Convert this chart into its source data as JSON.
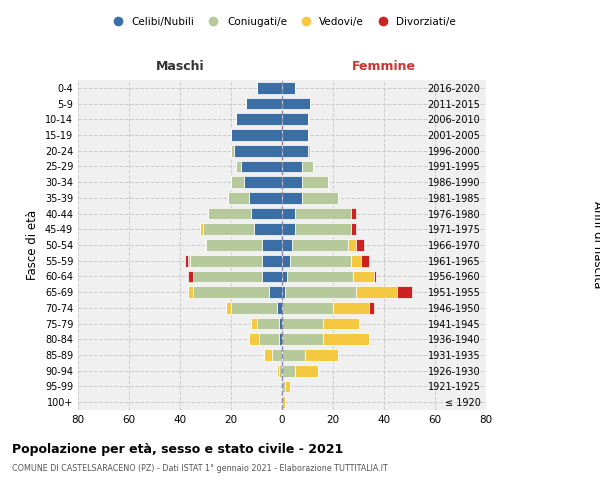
{
  "age_groups": [
    "100+",
    "95-99",
    "90-94",
    "85-89",
    "80-84",
    "75-79",
    "70-74",
    "65-69",
    "60-64",
    "55-59",
    "50-54",
    "45-49",
    "40-44",
    "35-39",
    "30-34",
    "25-29",
    "20-24",
    "15-19",
    "10-14",
    "5-9",
    "0-4"
  ],
  "birth_years": [
    "≤ 1920",
    "1921-1925",
    "1926-1930",
    "1931-1935",
    "1936-1940",
    "1941-1945",
    "1946-1950",
    "1951-1955",
    "1956-1960",
    "1961-1965",
    "1966-1970",
    "1971-1975",
    "1976-1980",
    "1981-1985",
    "1986-1990",
    "1991-1995",
    "1996-2000",
    "2001-2005",
    "2006-2010",
    "2011-2015",
    "2016-2020"
  ],
  "colors": {
    "celibe": "#3a6ea5",
    "coniugato": "#b5c99a",
    "vedovo": "#f5c842",
    "divorziato": "#cc2222"
  },
  "male": {
    "celibe": [
      0,
      0,
      0,
      0,
      1,
      1,
      2,
      5,
      8,
      8,
      8,
      11,
      12,
      13,
      15,
      16,
      19,
      20,
      18,
      14,
      10
    ],
    "coniugato": [
      0,
      0,
      1,
      4,
      8,
      9,
      18,
      30,
      27,
      28,
      22,
      20,
      17,
      8,
      5,
      2,
      1,
      0,
      0,
      0,
      0
    ],
    "vedovo": [
      0,
      0,
      1,
      3,
      4,
      2,
      2,
      2,
      0,
      1,
      0,
      1,
      0,
      0,
      0,
      0,
      0,
      0,
      0,
      0,
      0
    ],
    "divorziato": [
      0,
      0,
      0,
      0,
      0,
      0,
      0,
      0,
      2,
      1,
      0,
      0,
      0,
      0,
      0,
      0,
      0,
      0,
      0,
      0,
      0
    ]
  },
  "female": {
    "celibe": [
      0,
      0,
      0,
      0,
      0,
      0,
      0,
      1,
      2,
      3,
      4,
      5,
      5,
      8,
      8,
      8,
      10,
      10,
      10,
      11,
      5
    ],
    "coniugato": [
      0,
      1,
      5,
      9,
      16,
      16,
      20,
      28,
      26,
      24,
      22,
      22,
      22,
      14,
      10,
      4,
      1,
      0,
      0,
      0,
      0
    ],
    "vedovo": [
      1,
      2,
      9,
      13,
      18,
      14,
      14,
      16,
      8,
      4,
      3,
      0,
      0,
      0,
      0,
      0,
      0,
      0,
      0,
      0,
      0
    ],
    "divorziato": [
      0,
      0,
      0,
      0,
      0,
      0,
      2,
      6,
      1,
      3,
      3,
      2,
      2,
      0,
      0,
      0,
      0,
      0,
      0,
      0,
      0
    ]
  },
  "xlim": 80,
  "title": "Popolazione per età, sesso e stato civile - 2021",
  "subtitle": "COMUNE DI CASTELSARACENO (PZ) - Dati ISTAT 1° gennaio 2021 - Elaborazione TUTTITALIA.IT",
  "ylabel_left": "Fasce di età",
  "ylabel_right": "Anni di nascita",
  "header_left": "Maschi",
  "header_right": "Femmine",
  "legend_labels": [
    "Celibi/Nubili",
    "Coniugati/e",
    "Vedovi/e",
    "Divorziati/e"
  ],
  "background_color": "#ffffff",
  "plot_bg_color": "#f0f0f0"
}
